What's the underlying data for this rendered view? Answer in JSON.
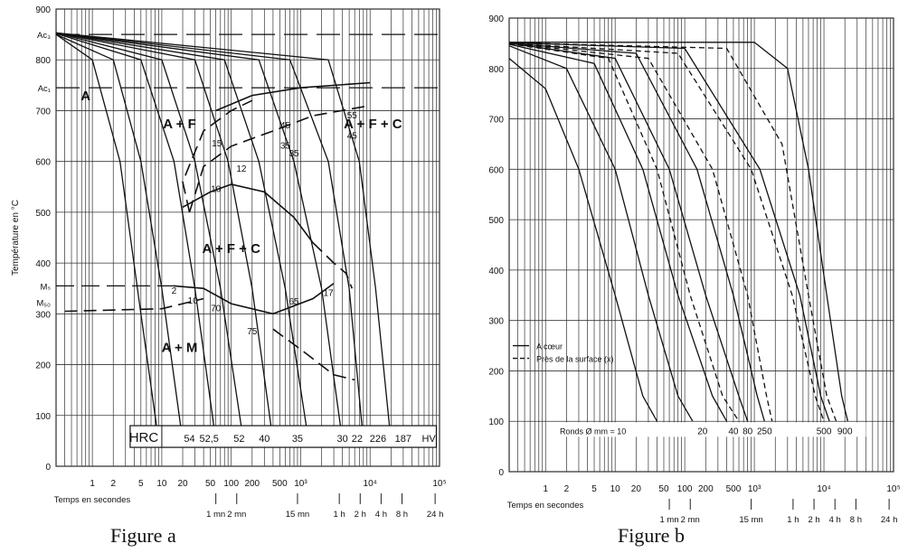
{
  "captions": {
    "a": "Figure a",
    "b": "Figure b"
  },
  "chart_data": [
    {
      "type": "line",
      "title": "",
      "xlabel": "Temps en secondes",
      "ylabel": "Température en °C",
      "x_scale": "log",
      "xlim": [
        0.3,
        100000
      ],
      "ylim": [
        0,
        900
      ],
      "grid": true,
      "y_ticks": [
        0,
        100,
        200,
        300,
        400,
        500,
        600,
        700,
        800,
        900
      ],
      "x_ticks": [
        {
          "v": 1,
          "t": "1"
        },
        {
          "v": 2,
          "t": "2"
        },
        {
          "v": 5,
          "t": "5"
        },
        {
          "v": 10,
          "t": "10"
        },
        {
          "v": 20,
          "t": "20"
        },
        {
          "v": 50,
          "t": "50"
        },
        {
          "v": 100,
          "t": "100"
        },
        {
          "v": 200,
          "t": "200"
        },
        {
          "v": 500,
          "t": "500"
        },
        {
          "v": 1000,
          "t": "10³"
        },
        {
          "v": 10000,
          "t": "10⁴"
        },
        {
          "v": 100000,
          "t": "10⁵"
        }
      ],
      "time_marks": [
        {
          "v": 60,
          "t": "1 mn"
        },
        {
          "v": 120,
          "t": "2 mn"
        },
        {
          "v": 900,
          "t": "15 mn"
        },
        {
          "v": 3600,
          "t": "1 h"
        },
        {
          "v": 7200,
          "t": "2 h"
        },
        {
          "v": 14400,
          "t": "4 h"
        },
        {
          "v": 28800,
          "t": "8 h"
        },
        {
          "v": 86400,
          "t": "24 h"
        }
      ],
      "y_extra_labels": [
        {
          "y": 850,
          "t": "Ac₃"
        },
        {
          "y": 745,
          "t": "Ac₁"
        },
        {
          "y": 355,
          "t": "Mₛ"
        },
        {
          "y": 323,
          "t": "M₅₀"
        }
      ],
      "region_labels": [
        {
          "x": 0.8,
          "y": 720,
          "t": "A"
        },
        {
          "x": 18,
          "y": 665,
          "t": "A + F"
        },
        {
          "x": 11000,
          "y": 665,
          "t": "A + F + C"
        },
        {
          "x": 100,
          "y": 420,
          "t": "A + F + C"
        },
        {
          "x": 18,
          "y": 225,
          "t": "A + M"
        }
      ],
      "hardness_labels": [
        {
          "x": 62,
          "y": 630,
          "t": "15"
        },
        {
          "x": 140,
          "y": 580,
          "t": "12"
        },
        {
          "x": 60,
          "y": 540,
          "t": "10"
        },
        {
          "x": 600,
          "y": 665,
          "t": "45"
        },
        {
          "x": 600,
          "y": 625,
          "t": "35"
        },
        {
          "x": 800,
          "y": 610,
          "t": "35"
        },
        {
          "x": 5500,
          "y": 685,
          "t": "55"
        },
        {
          "x": 5500,
          "y": 645,
          "t": "45"
        },
        {
          "x": 15,
          "y": 340,
          "t": "2"
        },
        {
          "x": 28,
          "y": 320,
          "t": "10"
        },
        {
          "x": 60,
          "y": 305,
          "t": "70"
        },
        {
          "x": 200,
          "y": 260,
          "t": "75"
        },
        {
          "x": 800,
          "y": 318,
          "t": "65"
        },
        {
          "x": 2500,
          "y": 335,
          "t": "17"
        }
      ],
      "hardness_scale_label": "HRC",
      "hardness_unit_right": "HV",
      "hardness_row": [
        {
          "x": 25,
          "t": "54"
        },
        {
          "x": 48,
          "t": "52,5"
        },
        {
          "x": 130,
          "t": "52"
        },
        {
          "x": 300,
          "t": "40"
        },
        {
          "x": 900,
          "t": "35"
        },
        {
          "x": 4000,
          "t": "30"
        },
        {
          "x": 6500,
          "t": "22"
        },
        {
          "x": 13000,
          "t": "226"
        },
        {
          "x": 30000,
          "t": "187"
        }
      ],
      "series": [
        {
          "values": [
            [
              0.3,
              850
            ],
            [
              1,
              800
            ],
            [
              2.5,
              600
            ],
            [
              5,
              300
            ],
            [
              9,
              50
            ]
          ]
        },
        {
          "values": [
            [
              0.3,
              850
            ],
            [
              2,
              800
            ],
            [
              5,
              600
            ],
            [
              10,
              350
            ],
            [
              20,
              50
            ]
          ]
        },
        {
          "values": [
            [
              0.3,
              852
            ],
            [
              5,
              800
            ],
            [
              15,
              600
            ],
            [
              30,
              350
            ],
            [
              60,
              50
            ]
          ]
        },
        {
          "values": [
            [
              0.3,
              853
            ],
            [
              10,
              800
            ],
            [
              30,
              600
            ],
            [
              70,
              350
            ],
            [
              150,
              50
            ]
          ]
        },
        {
          "values": [
            [
              0.3,
              853
            ],
            [
              30,
              800
            ],
            [
              90,
              600
            ],
            [
              200,
              350
            ],
            [
              400,
              50
            ]
          ]
        },
        {
          "values": [
            [
              0.3,
              853
            ],
            [
              80,
              800
            ],
            [
              250,
              600
            ],
            [
              600,
              350
            ],
            [
              1300,
              50
            ]
          ]
        },
        {
          "values": [
            [
              0.3,
              853
            ],
            [
              250,
              800
            ],
            [
              800,
              600
            ],
            [
              2000,
              350
            ],
            [
              4000,
              50
            ]
          ]
        },
        {
          "values": [
            [
              0.3,
              853
            ],
            [
              700,
              800
            ],
            [
              2500,
              600
            ],
            [
              5000,
              350
            ],
            [
              8000,
              50
            ]
          ]
        },
        {
          "values": [
            [
              0.3,
              853
            ],
            [
              2500,
              800
            ],
            [
              7000,
              600
            ],
            [
              12000,
              350
            ],
            [
              20000,
              50
            ]
          ]
        }
      ],
      "transformation_curves": [
        {
          "style": "solid",
          "values": [
            [
              60,
              700
            ],
            [
              200,
              730
            ],
            [
              1000,
              745
            ],
            [
              5000,
              752
            ],
            [
              10000,
              755
            ]
          ]
        },
        {
          "style": "dashed",
          "values": [
            [
              25,
              500
            ],
            [
              20,
              560
            ],
            [
              40,
              660
            ],
            [
              100,
              700
            ],
            [
              200,
              720
            ]
          ]
        },
        {
          "style": "dashed",
          "values": [
            [
              25,
              500
            ],
            [
              40,
              590
            ],
            [
              100,
              630
            ],
            [
              400,
              660
            ],
            [
              1500,
              690
            ],
            [
              10000,
              710
            ]
          ]
        },
        {
          "style": "solid",
          "values": [
            [
              20,
              510
            ],
            [
              50,
              540
            ],
            [
              100,
              555
            ],
            [
              300,
              540
            ],
            [
              800,
              490
            ],
            [
              1500,
              440
            ]
          ]
        },
        {
          "style": "solid",
          "values": [
            [
              15,
              355
            ],
            [
              40,
              350
            ],
            [
              100,
              320
            ],
            [
              400,
              300
            ],
            [
              1500,
              330
            ],
            [
              3000,
              360
            ]
          ]
        },
        {
          "style": "dashed",
          "values": [
            [
              0.4,
              305
            ],
            [
              10,
              310
            ],
            [
              20,
              320
            ],
            [
              40,
              330
            ]
          ]
        },
        {
          "style": "dashed",
          "values": [
            [
              400,
              270
            ],
            [
              1000,
              230
            ],
            [
              3000,
              180
            ],
            [
              6000,
              170
            ]
          ]
        },
        {
          "style": "dashed",
          "values": [
            [
              1500,
              440
            ],
            [
              3000,
              400
            ],
            [
              4500,
              380
            ],
            [
              5500,
              350
            ]
          ]
        }
      ]
    },
    {
      "type": "line",
      "title": "",
      "xlabel": "Temps en secondes",
      "ylabel": "",
      "x_scale": "log",
      "xlim": [
        0.3,
        100000
      ],
      "ylim": [
        0,
        900
      ],
      "grid": true,
      "y_ticks": [
        0,
        100,
        200,
        300,
        400,
        500,
        600,
        700,
        800,
        900
      ],
      "x_ticks": [
        {
          "v": 1,
          "t": "1"
        },
        {
          "v": 2,
          "t": "2"
        },
        {
          "v": 5,
          "t": "5"
        },
        {
          "v": 10,
          "t": "10"
        },
        {
          "v": 20,
          "t": "20"
        },
        {
          "v": 50,
          "t": "50"
        },
        {
          "v": 100,
          "t": "100"
        },
        {
          "v": 200,
          "t": "200"
        },
        {
          "v": 500,
          "t": "500"
        },
        {
          "v": 1000,
          "t": "10³"
        },
        {
          "v": 10000,
          "t": "10⁴"
        },
        {
          "v": 100000,
          "t": "10⁵"
        }
      ],
      "time_marks": [
        {
          "v": 60,
          "t": "1 mn"
        },
        {
          "v": 120,
          "t": "2 mn"
        },
        {
          "v": 900,
          "t": "15 mn"
        },
        {
          "v": 3600,
          "t": "1 h"
        },
        {
          "v": 7200,
          "t": "2 h"
        },
        {
          "v": 14400,
          "t": "4 h"
        },
        {
          "v": 28800,
          "t": "8 h"
        },
        {
          "v": 86400,
          "t": "24 h"
        }
      ],
      "legend": {
        "position": "left",
        "entries": [
          {
            "style": "solid",
            "label": "A cœur"
          },
          {
            "style": "dashed",
            "label": "Près de la surface (x)"
          }
        ]
      },
      "rounds_label": "Ronds  Ø mm = 10",
      "rounds": [
        {
          "x": 180,
          "t": "20"
        },
        {
          "x": 500,
          "t": "40"
        },
        {
          "x": 800,
          "t": "80"
        },
        {
          "x": 1400,
          "t": "250"
        },
        {
          "x": 10000,
          "t": "500"
        },
        {
          "x": 20000,
          "t": "900"
        }
      ],
      "series": [
        {
          "name": "A cœur",
          "style": "solid",
          "values": [
            [
              0.3,
              820
            ],
            [
              1,
              760
            ],
            [
              3,
              600
            ],
            [
              10,
              350
            ],
            [
              25,
              150
            ],
            [
              40,
              100
            ]
          ]
        },
        {
          "name": "A cœur",
          "style": "solid",
          "values": [
            [
              0.3,
              845
            ],
            [
              2,
              800
            ],
            [
              10,
              600
            ],
            [
              30,
              350
            ],
            [
              80,
              150
            ],
            [
              130,
              100
            ]
          ]
        },
        {
          "name": "A cœur",
          "style": "solid",
          "values": [
            [
              0.3,
              848
            ],
            [
              5,
              810
            ],
            [
              25,
              600
            ],
            [
              80,
              350
            ],
            [
              250,
              150
            ],
            [
              400,
              100
            ]
          ]
        },
        {
          "name": "A cœur",
          "style": "solid",
          "values": [
            [
              0.3,
              850
            ],
            [
              10,
              820
            ],
            [
              60,
              600
            ],
            [
              200,
              350
            ],
            [
              600,
              150
            ],
            [
              800,
              100
            ]
          ]
        },
        {
          "name": "A cœur",
          "style": "solid",
          "values": [
            [
              0.3,
              850
            ],
            [
              20,
              830
            ],
            [
              150,
              600
            ],
            [
              500,
              350
            ],
            [
              1100,
              150
            ],
            [
              1400,
              100
            ]
          ]
        },
        {
          "name": "A cœur",
          "style": "solid",
          "values": [
            [
              0.3,
              851
            ],
            [
              100,
              840
            ],
            [
              1200,
              600
            ],
            [
              4500,
              350
            ],
            [
              9000,
              150
            ],
            [
              12000,
              100
            ]
          ]
        },
        {
          "name": "A cœur",
          "style": "solid",
          "values": [
            [
              0.3,
              852
            ],
            [
              1000,
              852
            ],
            [
              3000,
              800
            ],
            [
              6000,
              600
            ],
            [
              11000,
              350
            ],
            [
              18000,
              150
            ],
            [
              22000,
              100
            ]
          ]
        },
        {
          "name": "Près de la surface (x)",
          "style": "dashed",
          "values": [
            [
              0.3,
              849
            ],
            [
              8,
              820
            ],
            [
              40,
              600
            ],
            [
              120,
              350
            ],
            [
              350,
              150
            ],
            [
              600,
              100
            ]
          ]
        },
        {
          "name": "Près de la surface (x)",
          "style": "dashed",
          "values": [
            [
              0.3,
              850
            ],
            [
              30,
              820
            ],
            [
              250,
              600
            ],
            [
              800,
              350
            ],
            [
              1500,
              150
            ],
            [
              1800,
              100
            ]
          ]
        },
        {
          "name": "Près de la surface (x)",
          "style": "dashed",
          "values": [
            [
              0.3,
              850
            ],
            [
              80,
              830
            ],
            [
              900,
              600
            ],
            [
              3500,
              350
            ],
            [
              7500,
              150
            ],
            [
              10000,
              100
            ]
          ]
        },
        {
          "name": "Près de la surface (x)",
          "style": "dashed",
          "values": [
            [
              0.3,
              851
            ],
            [
              400,
              840
            ],
            [
              2500,
              650
            ],
            [
              6000,
              350
            ],
            [
              11000,
              150
            ],
            [
              15000,
              100
            ]
          ]
        }
      ]
    }
  ]
}
